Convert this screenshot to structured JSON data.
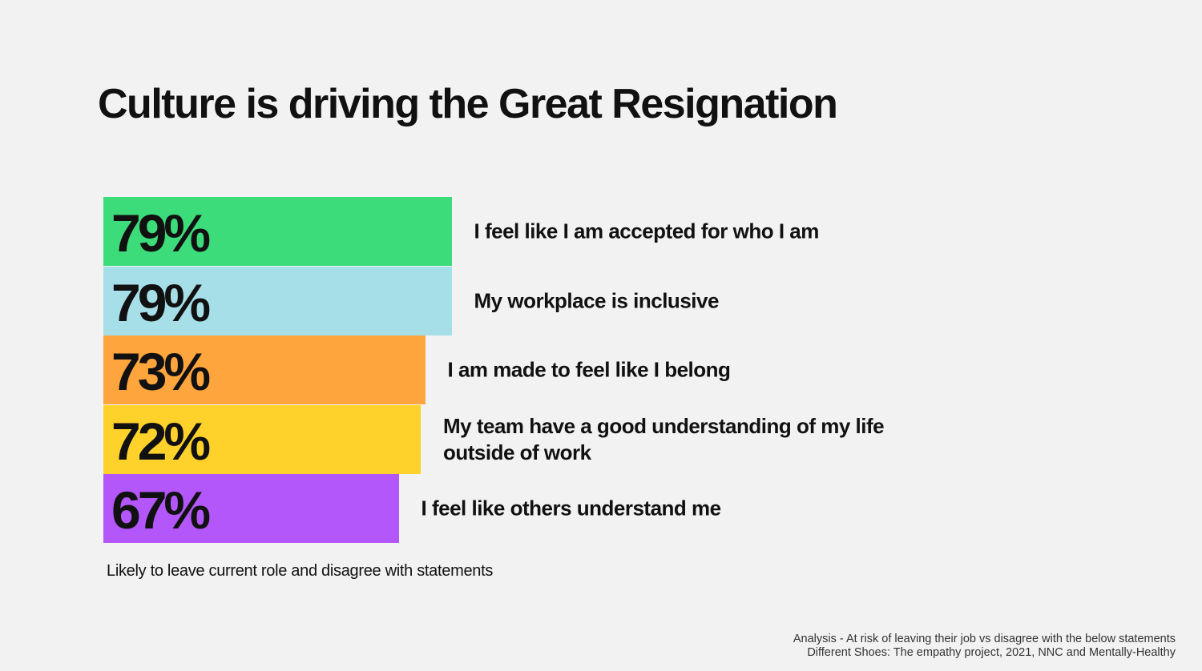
{
  "chart_data": {
    "type": "bar",
    "orientation": "horizontal",
    "title": "Culture is driving the Great Resignation",
    "categories": [
      "I feel like I am accepted for who I am",
      "My workplace is inclusive",
      "I am made to feel like I belong",
      "My team have a good understanding of my life outside of work",
      "I feel like others understand me"
    ],
    "values": [
      79,
      79,
      73,
      72,
      67
    ],
    "value_labels": [
      "79%",
      "79%",
      "73%",
      "72%",
      "67%"
    ],
    "colors": [
      "#3ddc7a",
      "#a6dfe8",
      "#ffa53e",
      "#ffd12b",
      "#b357fb"
    ],
    "note": "Likely to leave current role and disagree with statements",
    "source": [
      "Analysis - At risk of leaving their job vs disagree with the below statements",
      "Different Shoes: The empathy project, 2021, NNC and Mentally-Healthy"
    ]
  }
}
